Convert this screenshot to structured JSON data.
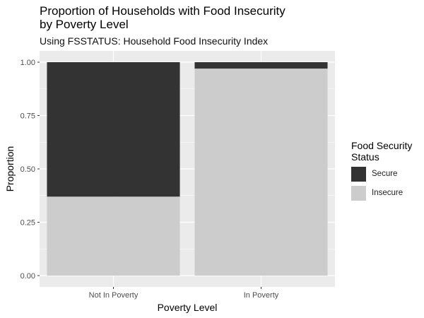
{
  "chart_data": {
    "type": "bar",
    "stacked": true,
    "title": "Proportion of Households with Food Insecurity\nby Poverty Level",
    "subtitle": "Using FSSTATUS: Household Food Insecurity Index",
    "xlabel": "Poverty Level",
    "ylabel": "Proportion",
    "categories": [
      "Not In Poverty",
      "In Poverty"
    ],
    "ylim": [
      0,
      1
    ],
    "yticks": [
      "0.00",
      "0.25",
      "0.50",
      "0.75",
      "1.00"
    ],
    "grid": true,
    "legend": {
      "title": "Food Security\nStatus",
      "placement": "right"
    },
    "series": [
      {
        "name": "Insecure",
        "values": [
          0.37,
          0.97
        ],
        "color": "#cccccc"
      },
      {
        "name": "Secure",
        "values": [
          0.63,
          0.03
        ],
        "color": "#333333"
      }
    ],
    "legend_order": [
      "Secure",
      "Insecure"
    ],
    "panel_background": "#ebebeb",
    "grid_color": "#ffffff"
  }
}
